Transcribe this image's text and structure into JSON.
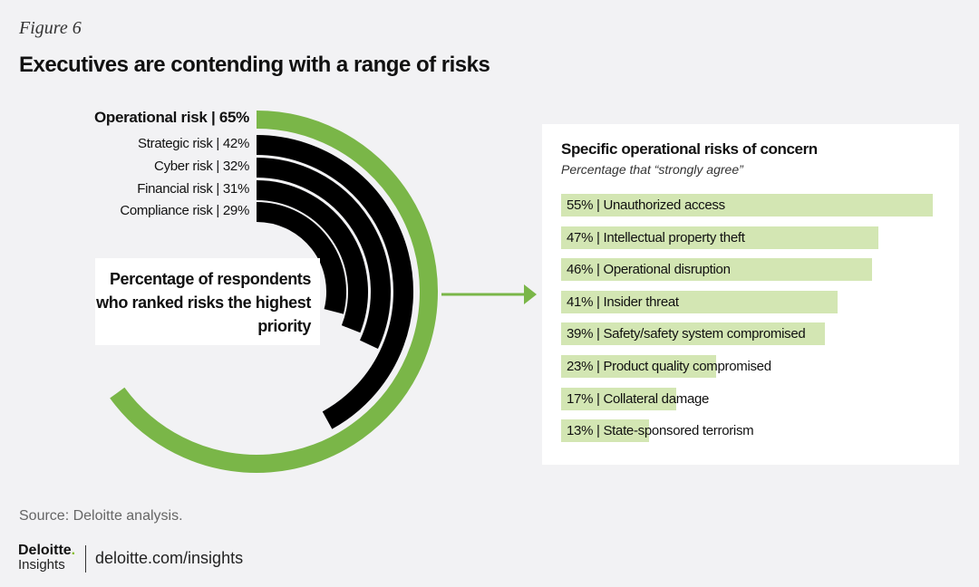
{
  "figure_label": "Figure 6",
  "title": "Executives are contending with a range of risks",
  "colors": {
    "green": "#7ab648",
    "black": "#000000",
    "bar": "#d3e6b3"
  },
  "chart_data": [
    {
      "type": "radial-bar",
      "caption": "Percentage of respondents who ranked risks the highest priority",
      "categories": [
        "Operational risk",
        "Strategic risk",
        "Cyber risk",
        "Financial risk",
        "Compliance risk"
      ],
      "values": [
        65,
        42,
        32,
        31,
        29
      ],
      "labels": [
        "Operational risk | 65%",
        "Strategic risk | 42%",
        "Cyber risk | 32%",
        "Financial risk | 31%",
        "Compliance risk | 29%"
      ],
      "ylim": [
        0,
        100
      ]
    },
    {
      "type": "bar",
      "title": "Specific operational risks of concern",
      "subtitle": "Percentage that “strongly agree”",
      "categories": [
        "Unauthorized access",
        "Intellectual property theft",
        "Operational disruption",
        "Insider threat",
        "Safety/safety system compromised",
        "Product quality compromised",
        "Collateral damage",
        "State-sponsored terrorism"
      ],
      "values": [
        55,
        47,
        46,
        41,
        39,
        23,
        17,
        13
      ],
      "labels": [
        "55% | Unauthorized access",
        "47% | Intellectual property theft",
        "46% | Operational disruption",
        "41% | Insider threat",
        "39% | Safety/safety system compromised",
        "23% | Product quality compromised",
        "17% | Collateral damage",
        "13% | State-sponsored terrorism"
      ]
    }
  ],
  "source": "Source: Deloitte analysis.",
  "logo": {
    "brand": "Deloitte",
    "sub": "Insights"
  },
  "url": "deloitte.com/insights"
}
